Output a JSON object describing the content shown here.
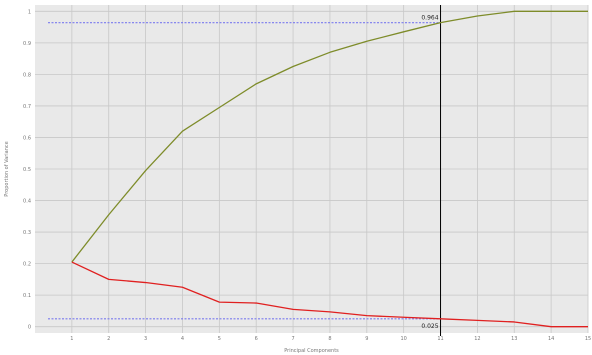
{
  "chart_data": {
    "type": "line",
    "xlabel": "Principal Components",
    "ylabel": "Proportion of Variance",
    "xlim": [
      0,
      15
    ],
    "ylim": [
      -0.02,
      1.02
    ],
    "x_ticks": [
      1,
      2,
      3,
      4,
      5,
      6,
      7,
      8,
      9,
      10,
      11,
      12,
      13,
      14,
      15
    ],
    "y_ticks": [
      0,
      0.1,
      0.2,
      0.3,
      0.4,
      0.5,
      0.6,
      0.7,
      0.8,
      0.9,
      1
    ],
    "y_tick_labels": [
      "0",
      "0.1",
      "0.2",
      "0.3",
      "0.4",
      "0.5",
      "0.6",
      "0.7",
      "0.8",
      "0.9",
      "1"
    ],
    "grid": true,
    "series": [
      {
        "color": "#7e8c2a",
        "x": [
          1,
          2,
          3,
          4,
          5,
          6,
          7,
          8,
          9,
          10,
          11,
          12,
          13,
          14,
          15
        ],
        "values": [
          0.205,
          0.355,
          0.495,
          0.62,
          0.695,
          0.77,
          0.825,
          0.87,
          0.905,
          0.935,
          0.964,
          0.985,
          1.0,
          1.0,
          1.0
        ]
      },
      {
        "color": "#e02020",
        "x": [
          1,
          2,
          3,
          4,
          5,
          6,
          7,
          8,
          9,
          10,
          11,
          12,
          13,
          14,
          15
        ],
        "values": [
          0.205,
          0.15,
          0.14,
          0.125,
          0.078,
          0.075,
          0.055,
          0.047,
          0.035,
          0.03,
          0.025,
          0.02,
          0.015,
          0.0,
          0.0
        ]
      }
    ],
    "reference_lines": [
      {
        "type": "horizontal",
        "y": 0.964,
        "color": "#7a7aee",
        "style": "dashed"
      },
      {
        "type": "horizontal",
        "y": 0.025,
        "color": "#7a7aee",
        "style": "dashed"
      },
      {
        "type": "vertical",
        "x": 11,
        "color": "#000000",
        "style": "solid"
      }
    ],
    "annotations": [
      {
        "text": "0.964",
        "x": 11,
        "y": 0.964
      },
      {
        "text": "0.025",
        "x": 11,
        "y": 0.025
      }
    ],
    "colors": {
      "background": "#ffffff",
      "plot_background": "#e9e9e9",
      "grid": "#c8c8c8"
    }
  }
}
